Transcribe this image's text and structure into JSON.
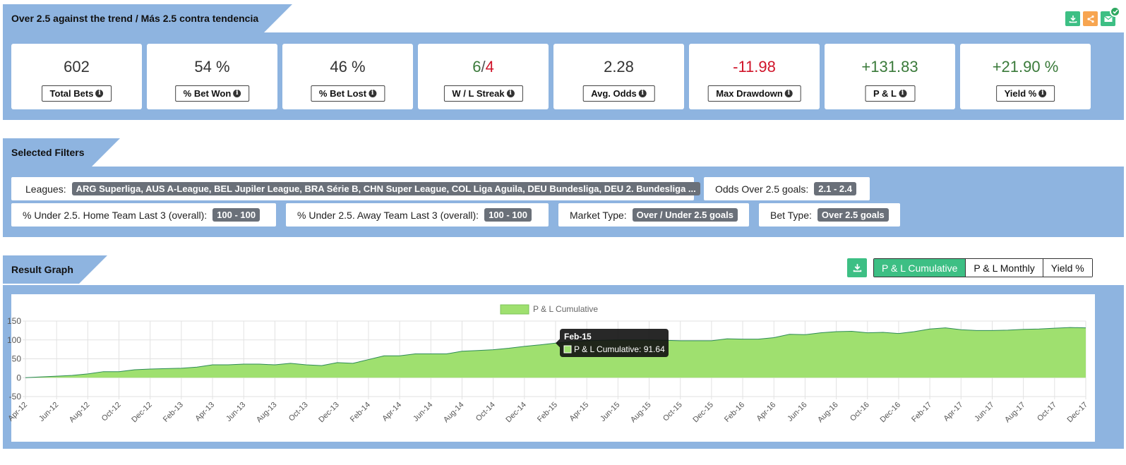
{
  "header": {
    "title": "Over 2.5 against the trend / Más 2.5 contra tendencia"
  },
  "top_icons": [
    "download-icon",
    "share-icon",
    "mail-icon",
    "check-icon"
  ],
  "stats": [
    {
      "value": "602",
      "label": "Total Bets"
    },
    {
      "value": "54 %",
      "label": "% Bet Won"
    },
    {
      "value": "46 %",
      "label": "% Bet Lost"
    },
    {
      "value_win": "6",
      "value_sep": "/",
      "value_loss": "4",
      "label": "W / L Streak"
    },
    {
      "value": "2.28",
      "label": "Avg. Odds"
    },
    {
      "value": "-11.98",
      "label": "Max Drawdown"
    },
    {
      "value": "+131.83",
      "label": "P & L"
    },
    {
      "value": "+21.90 %",
      "label": "Yield %"
    }
  ],
  "filters": {
    "title": "Selected Filters",
    "items": [
      {
        "label": "Leagues:",
        "value": "ARG Superliga, AUS A-League, BEL Jupiler League, BRA Série B, CHN Super League, COL Liga Aguila, DEU Bundesliga, DEU 2. Bundesliga ..."
      },
      {
        "label": "Odds Over 2.5 goals:",
        "value": "2.1 - 2.4"
      },
      {
        "label": "% Under 2.5. Home Team Last 3 (overall):",
        "value": "100 - 100"
      },
      {
        "label": "% Under 2.5. Away Team Last 3 (overall):",
        "value": "100 - 100"
      },
      {
        "label": "Market Type:",
        "value": "Over / Under 2.5 goals"
      },
      {
        "label": "Bet Type:",
        "value": "Over 2.5 goals"
      }
    ]
  },
  "graph": {
    "title": "Result Graph",
    "buttons": [
      "P & L Cumulative",
      "P & L Monthly",
      "Yield %"
    ],
    "active_button": "P & L Cumulative"
  },
  "chart_data": {
    "type": "area",
    "legend": "P & L Cumulative",
    "legend_position": "top-center",
    "grid": true,
    "ylim": [
      -50,
      150
    ],
    "yticks": [
      150,
      100,
      50,
      0,
      -50
    ],
    "x_tick_labels": [
      "Apr-12",
      "Jun-12",
      "Aug-12",
      "Oct-12",
      "Dec-12",
      "Feb-13",
      "Apr-13",
      "Jun-13",
      "Aug-13",
      "Oct-13",
      "Dec-13",
      "Feb-14",
      "Apr-14",
      "Jun-14",
      "Aug-14",
      "Oct-14",
      "Dec-14",
      "Feb-15",
      "Apr-15",
      "Jun-15",
      "Aug-15",
      "Oct-15",
      "Dec-15",
      "Feb-16",
      "Apr-16",
      "Jun-16",
      "Aug-16",
      "Oct-16",
      "Dec-16",
      "Feb-17",
      "Apr-17",
      "Jun-17",
      "Aug-17",
      "Oct-17",
      "Dec-17"
    ],
    "x": [
      "Apr-12",
      "May-12",
      "Jun-12",
      "Jul-12",
      "Aug-12",
      "Sep-12",
      "Oct-12",
      "Nov-12",
      "Dec-12",
      "Jan-13",
      "Feb-13",
      "Mar-13",
      "Apr-13",
      "May-13",
      "Jun-13",
      "Jul-13",
      "Aug-13",
      "Sep-13",
      "Oct-13",
      "Nov-13",
      "Dec-13",
      "Jan-14",
      "Feb-14",
      "Mar-14",
      "Apr-14",
      "May-14",
      "Jun-14",
      "Jul-14",
      "Aug-14",
      "Sep-14",
      "Oct-14",
      "Nov-14",
      "Dec-14",
      "Jan-15",
      "Feb-15",
      "Mar-15",
      "Apr-15",
      "May-15",
      "Jun-15",
      "Jul-15",
      "Aug-15",
      "Sep-15",
      "Oct-15",
      "Nov-15",
      "Dec-15",
      "Jan-16",
      "Feb-16",
      "Mar-16",
      "Apr-16",
      "May-16",
      "Jun-16",
      "Jul-16",
      "Aug-16",
      "Sep-16",
      "Oct-16",
      "Nov-16",
      "Dec-16",
      "Jan-17",
      "Feb-17",
      "Mar-17",
      "Apr-17",
      "May-17",
      "Jun-17",
      "Jul-17",
      "Aug-17",
      "Sep-17",
      "Oct-17",
      "Nov-17",
      "Dec-17"
    ],
    "series": [
      {
        "name": "P & L Cumulative",
        "color": "#9fe06f",
        "line_color": "#2e8b57",
        "values": [
          0,
          2,
          4,
          6,
          10,
          16,
          16,
          21,
          23,
          24,
          25,
          28,
          34,
          34,
          36,
          36,
          34,
          38,
          34,
          32,
          40,
          38,
          48,
          58,
          58,
          63,
          63,
          63,
          70,
          72,
          74,
          78,
          83,
          87,
          91.64,
          95,
          98,
          99,
          100,
          100,
          100,
          99,
          98,
          98,
          98,
          103,
          102,
          102,
          106,
          115,
          114,
          119,
          122,
          123,
          119,
          120,
          117,
          122,
          129,
          132,
          127,
          125,
          125,
          126,
          128,
          129,
          131,
          133,
          132
        ]
      }
    ],
    "tooltip": {
      "title": "Feb-15",
      "label": "P & L Cumulative: 91.64"
    }
  }
}
